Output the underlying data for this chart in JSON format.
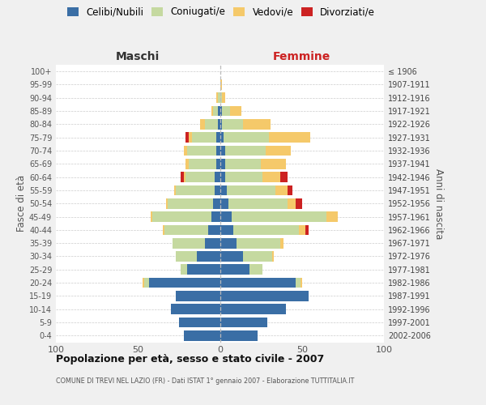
{
  "age_groups": [
    "0-4",
    "5-9",
    "10-14",
    "15-19",
    "20-24",
    "25-29",
    "30-34",
    "35-39",
    "40-44",
    "45-49",
    "50-54",
    "55-59",
    "60-64",
    "65-69",
    "70-74",
    "75-79",
    "80-84",
    "85-89",
    "90-94",
    "95-99",
    "100+"
  ],
  "birth_years": [
    "2002-2006",
    "1997-2001",
    "1992-1996",
    "1987-1991",
    "1982-1986",
    "1977-1981",
    "1972-1976",
    "1967-1971",
    "1962-1966",
    "1957-1961",
    "1952-1956",
    "1947-1951",
    "1942-1946",
    "1937-1941",
    "1932-1936",
    "1927-1931",
    "1922-1926",
    "1917-1921",
    "1912-1916",
    "1907-1911",
    "≤ 1906"
  ],
  "colors": {
    "celibi": "#3a6ea5",
    "coniugati": "#c5d9a0",
    "vedovi": "#f5c96a",
    "divorziati": "#cc2222"
  },
  "maschi": {
    "celibi": [
      22,
      25,
      30,
      27,
      43,
      20,
      14,
      9,
      7,
      5,
      4,
      3,
      3,
      2,
      2,
      2,
      1,
      1,
      0,
      0,
      0
    ],
    "coniugati": [
      0,
      0,
      0,
      0,
      3,
      4,
      13,
      20,
      27,
      36,
      28,
      24,
      18,
      17,
      18,
      15,
      8,
      3,
      1,
      0,
      0
    ],
    "vedovi": [
      0,
      0,
      0,
      0,
      1,
      0,
      0,
      0,
      1,
      1,
      1,
      1,
      1,
      2,
      2,
      2,
      3,
      1,
      1,
      0,
      0
    ],
    "divorziati": [
      0,
      0,
      0,
      0,
      0,
      0,
      0,
      0,
      0,
      0,
      0,
      0,
      2,
      0,
      0,
      2,
      0,
      0,
      0,
      0,
      0
    ]
  },
  "femmine": {
    "celibi": [
      23,
      29,
      40,
      54,
      46,
      18,
      14,
      10,
      8,
      7,
      5,
      4,
      3,
      3,
      3,
      2,
      1,
      1,
      0,
      0,
      0
    ],
    "coniugati": [
      0,
      0,
      0,
      0,
      3,
      8,
      18,
      27,
      40,
      58,
      36,
      30,
      23,
      22,
      25,
      28,
      13,
      5,
      1,
      0,
      0
    ],
    "vedovi": [
      0,
      0,
      0,
      0,
      1,
      0,
      1,
      2,
      4,
      7,
      5,
      7,
      11,
      15,
      15,
      25,
      17,
      7,
      2,
      1,
      0
    ],
    "divorziati": [
      0,
      0,
      0,
      0,
      0,
      0,
      0,
      0,
      2,
      0,
      4,
      3,
      4,
      0,
      0,
      0,
      0,
      0,
      0,
      0,
      0
    ]
  },
  "xlim": 100,
  "title": "Popolazione per età, sesso e stato civile - 2007",
  "subtitle": "COMUNE DI TREVI NEL LAZIO (FR) - Dati ISTAT 1° gennaio 2007 - Elaborazione TUTTITALIA.IT",
  "ylabel_left": "Fasce di età",
  "ylabel_right": "Anni di nascita",
  "label_maschi": "Maschi",
  "label_femmine": "Femmine",
  "legend_labels": [
    "Celibi/Nubili",
    "Coniugati/e",
    "Vedovi/e",
    "Divorziati/e"
  ],
  "bg_color": "#f0f0f0",
  "plot_bg": "#ffffff"
}
